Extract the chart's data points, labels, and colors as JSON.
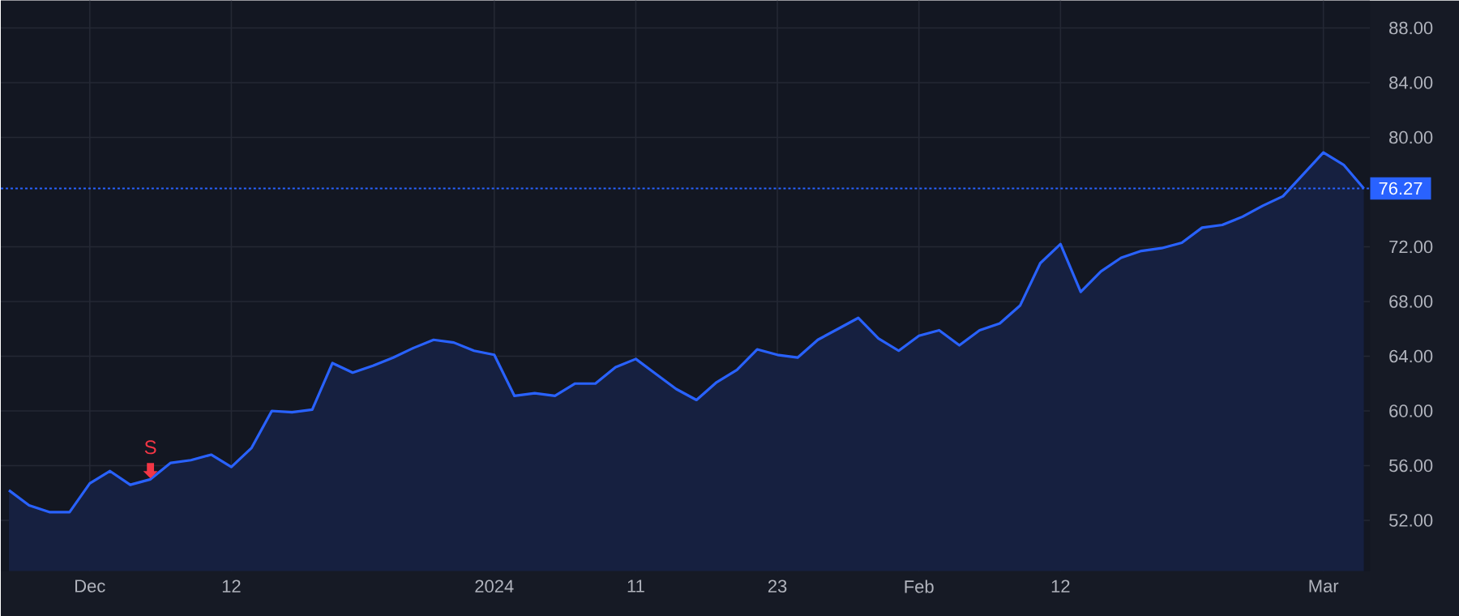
{
  "chart_data": {
    "type": "area",
    "categories": [
      null,
      null,
      null,
      null,
      "Dec",
      null,
      null,
      null,
      null,
      null,
      null,
      "12",
      null,
      null,
      null,
      null,
      null,
      null,
      null,
      null,
      null,
      null,
      null,
      null,
      "2024",
      null,
      null,
      null,
      null,
      null,
      null,
      "11",
      null,
      null,
      null,
      null,
      null,
      null,
      "23",
      null,
      null,
      null,
      null,
      null,
      null,
      "Feb",
      null,
      null,
      null,
      null,
      null,
      null,
      "12",
      null,
      null,
      null,
      null,
      null,
      null,
      null,
      null,
      null,
      null,
      null,
      null,
      "Mar",
      null,
      null
    ],
    "series": [
      {
        "color": "#2962ff",
        "values": [
          54.2,
          53.1,
          52.6,
          52.6,
          54.7,
          55.6,
          54.6,
          55.0,
          56.2,
          56.4,
          56.8,
          55.9,
          57.3,
          60.0,
          59.9,
          60.1,
          63.5,
          62.8,
          63.3,
          63.9,
          64.6,
          65.2,
          65.0,
          64.4,
          64.1,
          61.1,
          61.3,
          61.1,
          62.0,
          62.0,
          63.2,
          63.8,
          62.7,
          61.6,
          60.8,
          62.1,
          63.0,
          64.5,
          64.1,
          63.9,
          65.2,
          66.0,
          66.8,
          65.3,
          64.4,
          65.5,
          65.9,
          64.8,
          65.9,
          66.4,
          67.7,
          70.8,
          72.2,
          68.7,
          70.2,
          71.2,
          71.7,
          71.9,
          72.3,
          73.4,
          73.6,
          74.2,
          75.0,
          75.7,
          77.3,
          78.9,
          78.0,
          76.27
        ]
      }
    ],
    "ylim": [
      48.3,
      90
    ],
    "yticks": [
      {
        "value": 52,
        "label": "52.00"
      },
      {
        "value": 56,
        "label": "56.00"
      },
      {
        "value": 60,
        "label": "60.00"
      },
      {
        "value": 64,
        "label": "64.00"
      },
      {
        "value": 68,
        "label": "68.00"
      },
      {
        "value": 72,
        "label": "72.00"
      },
      {
        "value": 80,
        "label": "80.00"
      },
      {
        "value": 84,
        "label": "84.00"
      },
      {
        "value": 88,
        "label": "88.00"
      }
    ],
    "grid": true,
    "ref_lines": [
      {
        "axis": "y",
        "value": 76.27,
        "label": "76.27",
        "color": "#2962ff",
        "line_style": "dotted"
      }
    ],
    "annotations": [
      {
        "text": "S",
        "y": 55.0
      }
    ]
  }
}
